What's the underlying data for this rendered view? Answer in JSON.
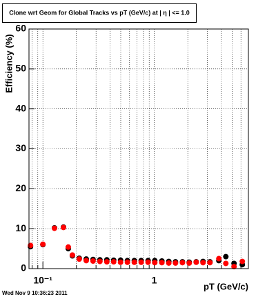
{
  "chart_data": {
    "type": "scatter",
    "title": "Clone wrt Geom for Global Tracks vs pT (GeV/c) at | η | <= 1.0",
    "x_label": "pT (GeV/c)",
    "y_label": "Efficiency (%)",
    "footer": "Wed Nov  9 10:36:23 2011",
    "x_log": true,
    "grid": true,
    "xlim": [
      0.075,
      7
    ],
    "ylim": [
      0,
      60
    ],
    "xticks": [
      {
        "value": 0.1,
        "label": "10⁻¹"
      },
      1
    ],
    "xminor_ticks": [
      0.08,
      0.09,
      0.2,
      0.3,
      0.4,
      0.5,
      0.6,
      0.7,
      0.8,
      0.9,
      2,
      3,
      4,
      5,
      6
    ],
    "yticks": [
      0,
      10,
      20,
      30,
      40,
      50,
      60
    ],
    "x": [
      0.0774,
      0.1,
      0.127,
      0.153,
      0.169,
      0.184,
      0.212,
      0.245,
      0.282,
      0.325,
      0.375,
      0.432,
      0.498,
      0.574,
      0.662,
      0.763,
      0.88,
      1.01,
      1.17,
      1.35,
      1.55,
      1.79,
      2.06,
      2.38,
      2.74,
      3.16,
      3.8,
      4.39,
      5.2,
      6.17
    ],
    "series": [
      {
        "color": "#000000",
        "values": [
          5.5,
          6.0,
          10.2,
          10.4,
          5.0,
          3.2,
          2.6,
          2.4,
          2.3,
          2.2,
          2.2,
          2.1,
          2.1,
          2.0,
          2.0,
          2.0,
          2.0,
          2.0,
          1.9,
          1.8,
          1.7,
          1.7,
          1.6,
          1.7,
          1.8,
          1.7,
          2.0,
          3.0,
          1.3,
          1.0
        ]
      },
      {
        "color": "#ff0000",
        "values": [
          5.8,
          6.1,
          10.1,
          10.3,
          5.4,
          3.4,
          2.4,
          2.0,
          1.9,
          1.8,
          1.7,
          1.7,
          1.6,
          1.6,
          1.6,
          1.6,
          1.6,
          1.5,
          1.5,
          1.4,
          1.4,
          1.5,
          1.4,
          1.6,
          1.5,
          1.5,
          2.5,
          1.3,
          0.5,
          1.8
        ]
      }
    ]
  }
}
